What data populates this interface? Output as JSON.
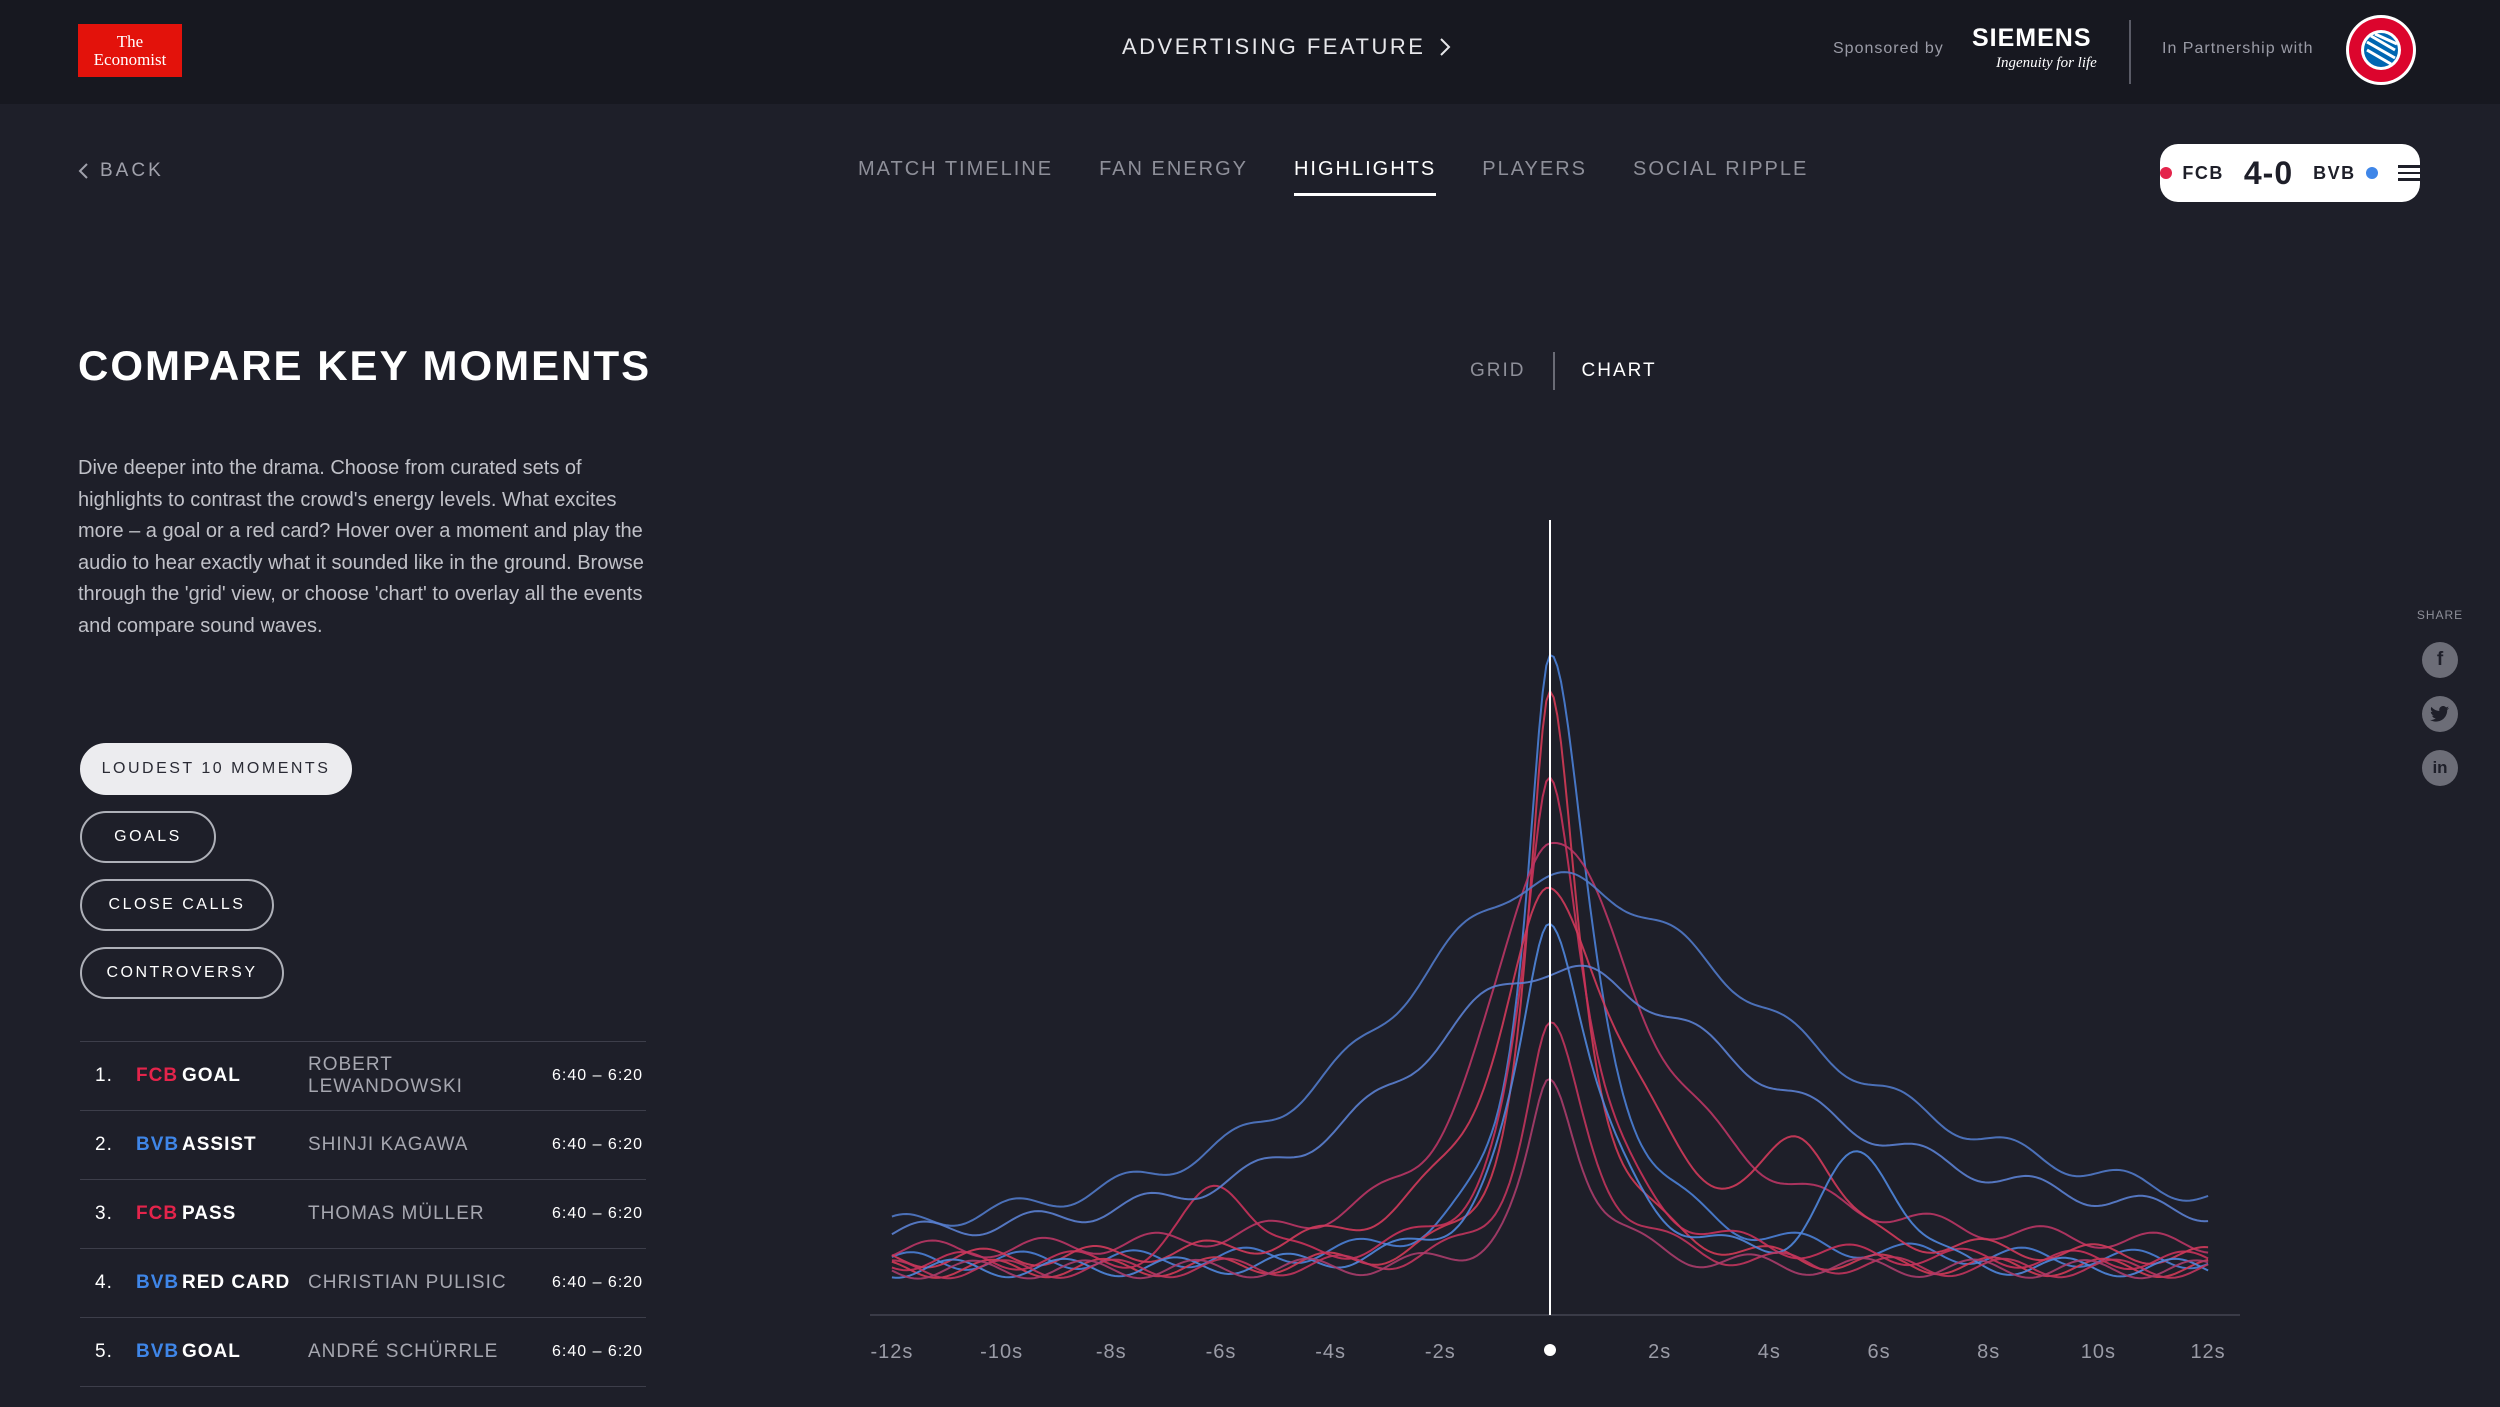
{
  "header": {
    "logo_line1": "The",
    "logo_line2": "Economist",
    "ad_label": "ADVERTISING FEATURE",
    "sponsored_label": "Sponsored by",
    "sponsor_name": "SIEMENS",
    "sponsor_tagline": "Ingenuity for life",
    "partner_label": "In Partnership with",
    "club_badge_text": "FC BAYERN MÜNCHEN"
  },
  "nav": {
    "back_label": "BACK",
    "tabs": [
      {
        "label": "MATCH TIMELINE",
        "active": false
      },
      {
        "label": "FAN ENERGY",
        "active": false
      },
      {
        "label": "HIGHLIGHTS",
        "active": true
      },
      {
        "label": "PLAYERS",
        "active": false
      },
      {
        "label": "SOCIAL RIPPLE",
        "active": false
      }
    ]
  },
  "score": {
    "home": "FCB",
    "away": "BVB",
    "score": "4-0",
    "home_color": "#e4244b",
    "away_color": "#3f86e8"
  },
  "main": {
    "title": "COMPARE KEY MOMENTS",
    "description": "Dive deeper into the drama. Choose from curated sets of highlights to contrast the crowd's energy levels. What excites more – a goal or a red card? Hover over a moment and play the audio to hear exactly what it sounded like in the ground. Browse through the 'grid' view, or choose 'chart' to overlay all the events and compare sound waves.",
    "filters": [
      {
        "label": "LOUDEST 10 MOMENTS",
        "active": true
      },
      {
        "label": "GOALS",
        "active": false
      },
      {
        "label": "CLOSE CALLS",
        "active": false
      },
      {
        "label": "CONTROVERSY",
        "active": false
      }
    ],
    "moments": [
      {
        "num": "1.",
        "team": "FCB",
        "event": "GOAL",
        "player": "ROBERT LEWANDOWSKI",
        "time": "6:40 – 6:20"
      },
      {
        "num": "2.",
        "team": "BVB",
        "event": "ASSIST",
        "player": "SHINJI KAGAWA",
        "time": "6:40 – 6:20"
      },
      {
        "num": "3.",
        "team": "FCB",
        "event": "PASS",
        "player": "THOMAS MÜLLER",
        "time": "6:40 – 6:20"
      },
      {
        "num": "4.",
        "team": "BVB",
        "event": "RED CARD",
        "player": "CHRISTIAN PULISIC",
        "time": "6:40 – 6:20"
      },
      {
        "num": "5.",
        "team": "BVB",
        "event": "GOAL",
        "player": "ANDRÉ SCHÜRRLE",
        "time": "6:40 – 6:20"
      }
    ]
  },
  "view_toggle": {
    "grid_label": "GRID",
    "chart_label": "CHART",
    "active": "chart"
  },
  "share": {
    "label": "SHARE",
    "icons": [
      "facebook-icon",
      "twitter-icon",
      "linkedin-icon"
    ]
  },
  "colors": {
    "fcb": "#e4244b",
    "bvb": "#3f86e8",
    "background": "#1e1f29",
    "topbar": "#171820"
  },
  "chart_data": {
    "type": "line",
    "x_tick_labels": [
      "-12s",
      "-10s",
      "-8s",
      "-6s",
      "-4s",
      "-2s",
      "",
      "2s",
      "4s",
      "6s",
      "8s",
      "10s",
      "12s"
    ],
    "x_ticks": [
      -12,
      -10,
      -8,
      -6,
      -4,
      -2,
      0,
      2,
      4,
      6,
      8,
      10,
      12
    ],
    "xlim": [
      -12.4,
      12.4
    ],
    "ylim": [
      0,
      1
    ],
    "marker_at": 0,
    "series": [
      {
        "team": "BVB",
        "color": "#4a7fd6",
        "peak": 0.86,
        "wl": 0.55,
        "wr": 0.85,
        "base": 0.05,
        "bumps": []
      },
      {
        "team": "FCB",
        "color": "#d23a55",
        "peak": 0.8,
        "wl": 0.5,
        "wr": 0.65,
        "base": 0.04,
        "bumps": []
      },
      {
        "team": "FCB",
        "color": "#c8325a",
        "peak": 0.7,
        "wl": 0.6,
        "wr": 0.75,
        "base": 0.05,
        "bumps": [
          {
            "x": -6,
            "h": 0.1,
            "w": 0.8
          }
        ]
      },
      {
        "team": "FCB",
        "color": "#b93564",
        "peak": 0.62,
        "wl": 1.3,
        "wr": 2.0,
        "base": 0.06,
        "bumps": []
      },
      {
        "team": "BVB",
        "color": "#5079c8",
        "peak": 0.56,
        "wl": 4.0,
        "wr": 5.5,
        "base": 0.05,
        "bumps": []
      },
      {
        "team": "FCB",
        "color": "#d03a5a",
        "peak": 0.54,
        "wl": 1.2,
        "wr": 1.6,
        "base": 0.05,
        "bumps": [
          {
            "x": 4.6,
            "h": 0.12,
            "w": 0.8
          }
        ]
      },
      {
        "team": "BVB",
        "color": "#4f86dc",
        "peak": 0.51,
        "wl": 0.7,
        "wr": 0.9,
        "base": 0.04,
        "bumps": [
          {
            "x": 5.7,
            "h": 0.14,
            "w": 1.0
          }
        ]
      },
      {
        "team": "BVB",
        "color": "#5a80d0",
        "peak": 0.44,
        "wl": 3.5,
        "wr": 5.0,
        "base": 0.06,
        "bumps": []
      },
      {
        "team": "FCB",
        "color": "#c0345c",
        "peak": 0.36,
        "wl": 0.6,
        "wr": 0.8,
        "base": 0.04,
        "bumps": []
      },
      {
        "team": "FCB",
        "color": "#a93c6a",
        "peak": 0.29,
        "wl": 0.5,
        "wr": 0.7,
        "base": 0.04,
        "bumps": []
      }
    ]
  }
}
